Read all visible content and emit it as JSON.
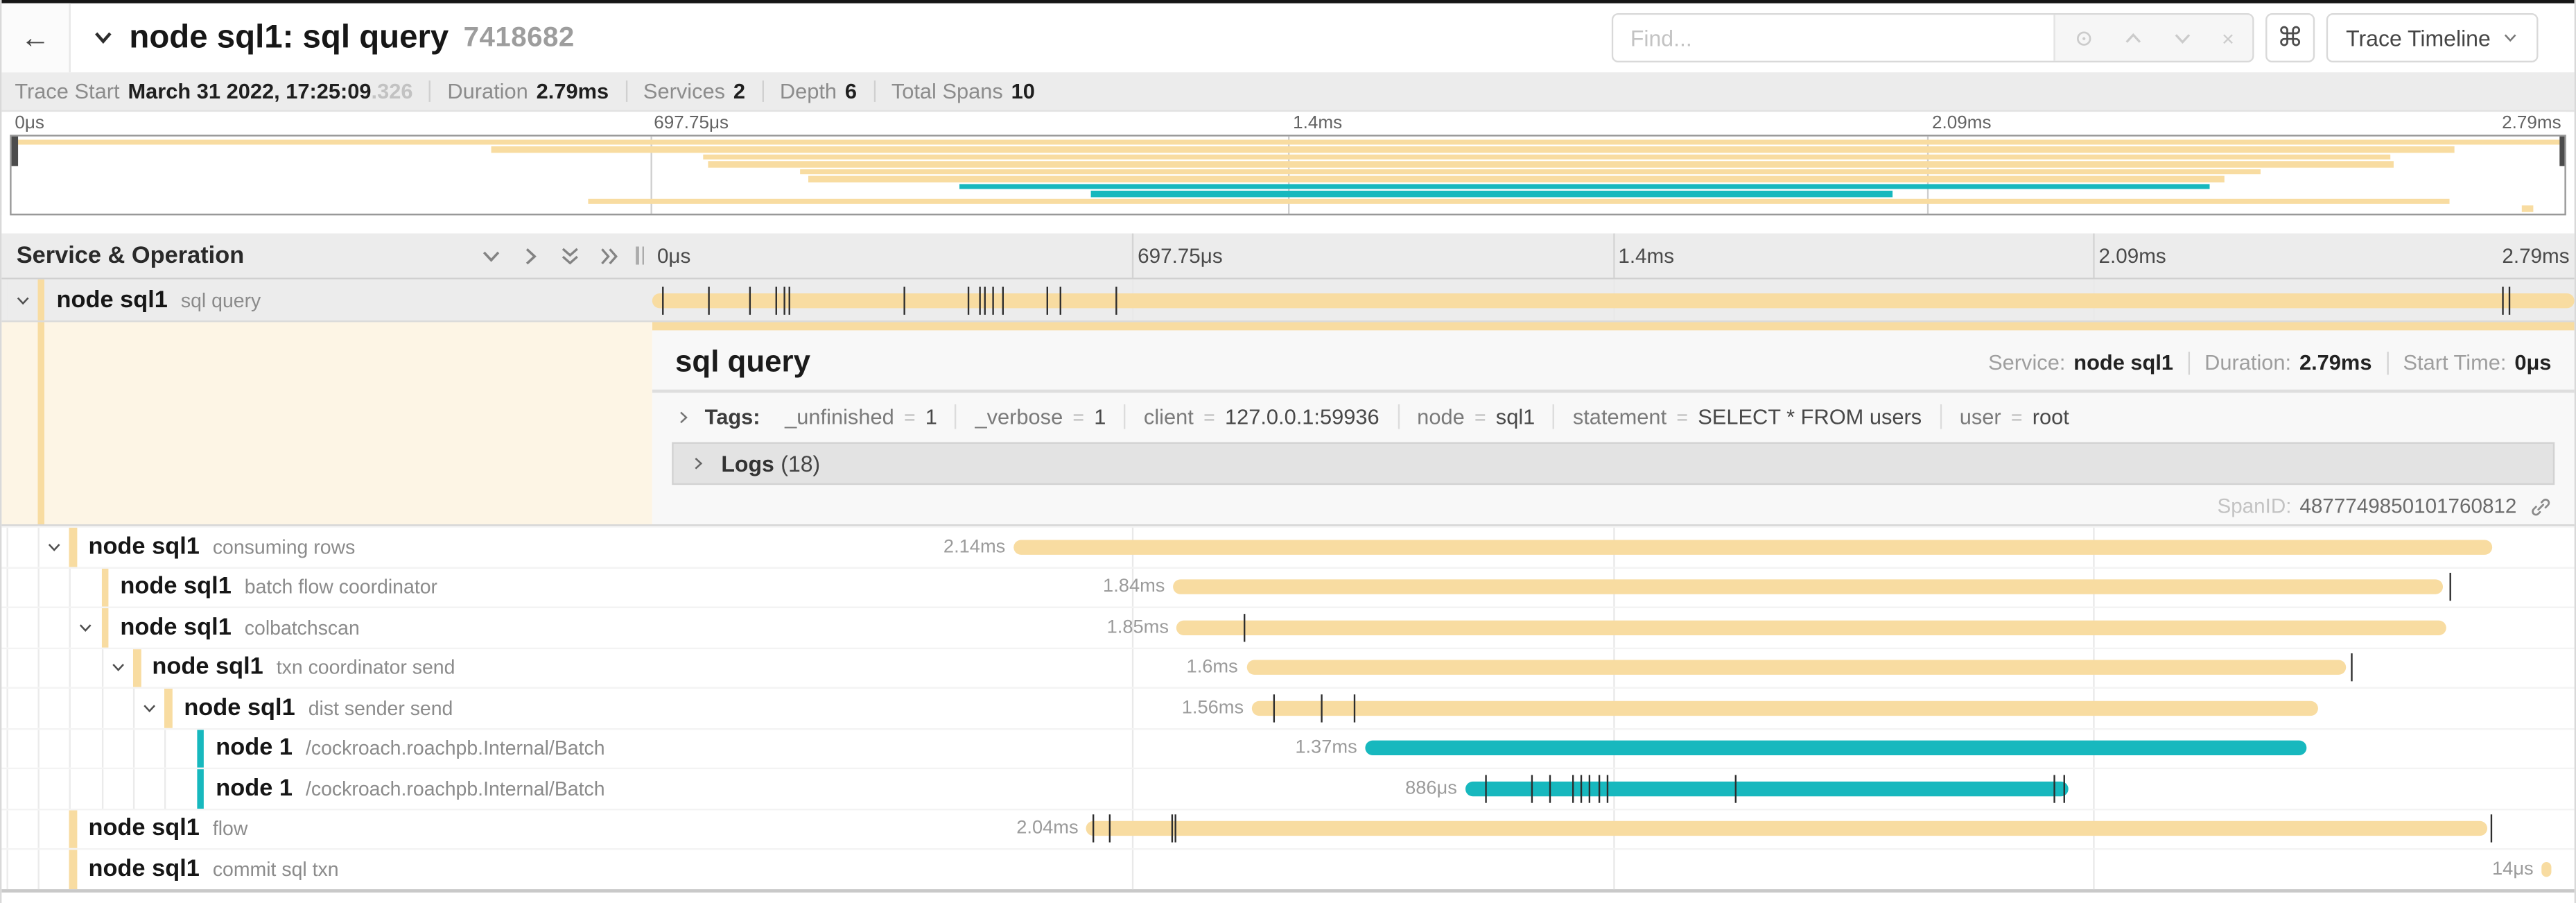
{
  "colors": {
    "tan": "#F8DCA1",
    "teal": "#17B8BE"
  },
  "topbar": {
    "back_icon": "←",
    "title": "node sql1: sql query",
    "trace_id": "7418682",
    "find_placeholder": "Find...",
    "clear_icon": "×",
    "command_icon": "⌘",
    "view_button": "Trace Timeline"
  },
  "trace_info": {
    "items": [
      {
        "label": "Trace Start",
        "value": "March 31 2022, 17:25:09",
        "suffix": ".326"
      },
      {
        "label": "Duration",
        "value": "2.79ms"
      },
      {
        "label": "Services",
        "value": "2"
      },
      {
        "label": "Depth",
        "value": "6"
      },
      {
        "label": "Total Spans",
        "value": "10"
      }
    ]
  },
  "ruler": {
    "ticks": [
      {
        "label": "0μs",
        "pos": 0
      },
      {
        "label": "697.75μs",
        "pos": 25
      },
      {
        "label": "1.4ms",
        "pos": 50
      },
      {
        "label": "2.09ms",
        "pos": 75
      },
      {
        "label": "2.79ms",
        "pos": 100
      }
    ]
  },
  "left_header": {
    "title": "Service & Operation"
  },
  "spans": [
    {
      "service": "node sql1",
      "operation": "sql query",
      "depth": 0,
      "toggle": true,
      "color": "tan",
      "start": 0,
      "end": 100,
      "duration": null,
      "selected": true,
      "ticks": [
        0.5,
        2.9,
        5.0,
        6.4,
        6.8,
        7.1,
        13.1,
        16.4,
        17.0,
        17.3,
        17.7,
        18.2,
        20.5,
        21.2,
        24.1,
        96.2,
        96.6
      ]
    },
    {
      "service": "node sql1",
      "operation": "consuming rows",
      "depth": 1,
      "toggle": true,
      "color": "tan",
      "start": 18.8,
      "end": 95.7,
      "duration": "2.14ms",
      "ticks": []
    },
    {
      "service": "node sql1",
      "operation": "batch flow coordinator",
      "depth": 2,
      "toggle": false,
      "color": "tan",
      "start": 27.1,
      "end": 93.2,
      "duration": "1.84ms",
      "ticks": [
        93.5
      ]
    },
    {
      "service": "node sql1",
      "operation": "colbatchscan",
      "depth": 2,
      "toggle": true,
      "color": "tan",
      "start": 27.3,
      "end": 93.3,
      "duration": "1.85ms",
      "ticks": [
        30.8
      ]
    },
    {
      "service": "node sql1",
      "operation": "txn coordinator send",
      "depth": 3,
      "toggle": true,
      "color": "tan",
      "start": 30.9,
      "end": 88.1,
      "duration": "1.6ms",
      "ticks": [
        88.4
      ]
    },
    {
      "service": "node sql1",
      "operation": "dist sender send",
      "depth": 4,
      "toggle": true,
      "color": "tan",
      "start": 31.2,
      "end": 86.7,
      "duration": "1.56ms",
      "ticks": [
        32.3,
        34.8,
        36.5
      ]
    },
    {
      "service": "node 1",
      "operation": "/cockroach.roachpb.Internal/Batch",
      "depth": 5,
      "toggle": false,
      "color": "teal",
      "start": 37.1,
      "end": 86.1,
      "duration": "1.37ms",
      "ticks": []
    },
    {
      "service": "node 1",
      "operation": "/cockroach.roachpb.Internal/Batch",
      "depth": 5,
      "toggle": false,
      "color": "teal",
      "start": 42.3,
      "end": 73.7,
      "duration": "886μs",
      "ticks": [
        43.3,
        45.7,
        46.7,
        47.9,
        48.3,
        48.7,
        49.2,
        49.7,
        56.3,
        72.9,
        73.4
      ]
    },
    {
      "service": "node sql1",
      "operation": "flow",
      "depth": 1,
      "toggle": false,
      "color": "tan",
      "start": 22.6,
      "end": 95.5,
      "duration": "2.04ms",
      "ticks": [
        22.9,
        23.8,
        27.0,
        27.2,
        95.6
      ]
    },
    {
      "service": "node sql1",
      "operation": "commit sql txn",
      "depth": 1,
      "toggle": false,
      "color": "tan",
      "start": 98.3,
      "end": 98.8,
      "duration": "14μs",
      "ticks": []
    }
  ],
  "detail": {
    "title": "sql query",
    "meta": [
      {
        "label": "Service:",
        "value": "node sql1"
      },
      {
        "label": "Duration:",
        "value": "2.79ms"
      },
      {
        "label": "Start Time:",
        "value": "0μs"
      }
    ],
    "tags_label": "Tags:",
    "tags": [
      {
        "key": "_unfinished",
        "value": "1"
      },
      {
        "key": "_verbose",
        "value": "1"
      },
      {
        "key": "client",
        "value": "127.0.0.1:59936"
      },
      {
        "key": "node",
        "value": "sql1"
      },
      {
        "key": "statement",
        "value": "SELECT * FROM users"
      },
      {
        "key": "user",
        "value": "root"
      }
    ],
    "logs_label": "Logs",
    "logs_count": "(18)",
    "span_id_label": "SpanID:",
    "span_id": "4877749850101760812"
  }
}
